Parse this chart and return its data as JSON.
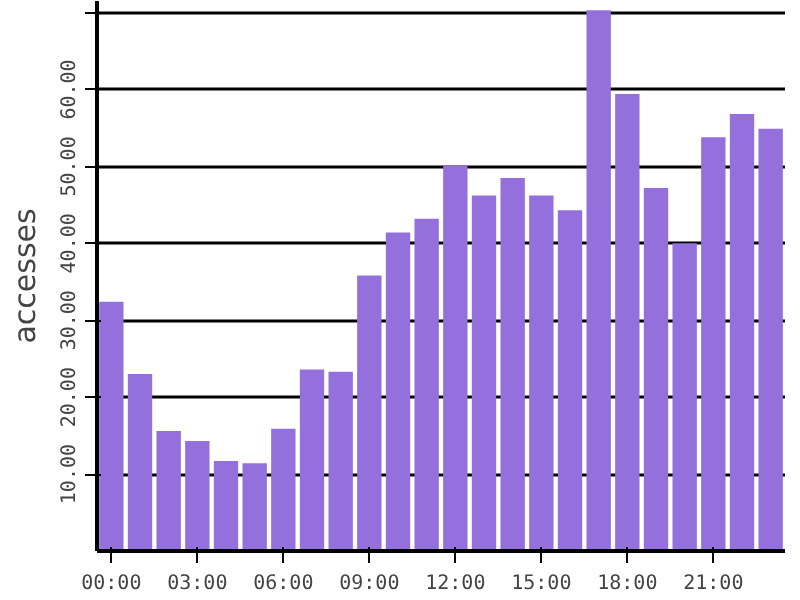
{
  "chart_data": {
    "type": "bar",
    "ylabel": "accesses",
    "categories": [
      "00:00",
      null,
      null,
      "03:00",
      null,
      null,
      "06:00",
      null,
      null,
      "09:00",
      null,
      null,
      "12:00",
      null,
      null,
      "15:00",
      null,
      null,
      "18:00",
      null,
      null,
      "21:00",
      null,
      null
    ],
    "values": [
      32.4,
      23,
      15.6,
      14.3,
      11.7,
      11.4,
      15.9,
      23.6,
      23.3,
      35.8,
      41.4,
      43.2,
      50.1,
      46.2,
      48.5,
      46.2,
      44.3,
      70.3,
      59.4,
      47.2,
      40.0,
      53.8,
      56.8,
      54.9
    ],
    "color": "#9370db",
    "ylim": [
      0,
      71.5
    ],
    "yticks": [
      {
        "value": 10,
        "label": "10.00"
      },
      {
        "value": 20,
        "label": "20.00"
      },
      {
        "value": 30,
        "label": "30.00"
      },
      {
        "value": 40,
        "label": "40.00"
      },
      {
        "value": 50,
        "label": "50.00"
      },
      {
        "value": 60,
        "label": "60.00"
      },
      {
        "value": 70,
        "label": null
      }
    ],
    "grid": "y"
  }
}
